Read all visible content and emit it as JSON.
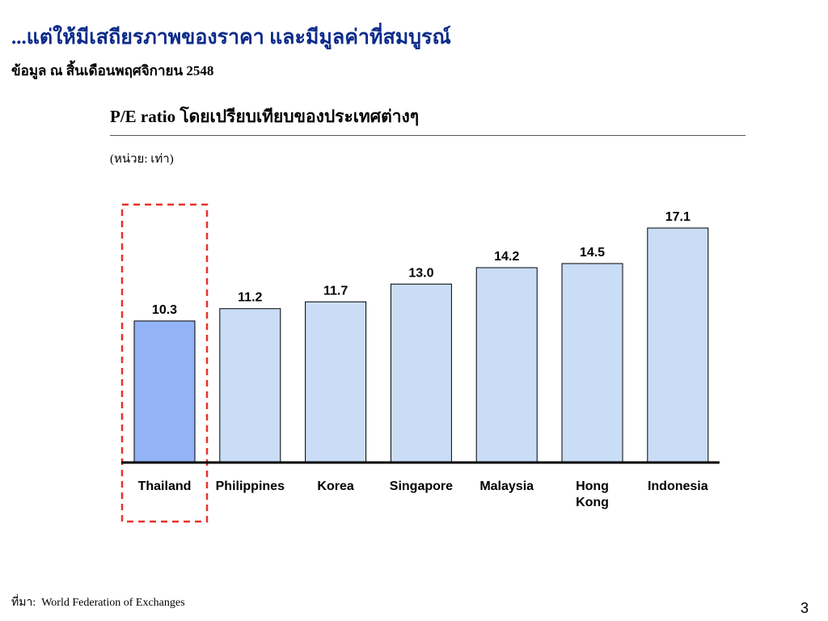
{
  "slide": {
    "title": "...แต่ให้มีเสถียรภาพของราคา และมีมูลค่าที่สมบูรณ์",
    "subtitle": "ข้อมูล ณ สิ้นเดือนพฤศจิกายน 2548",
    "source_label": "ที่มา:",
    "source_text": "World Federation of Exchanges",
    "page_number": "3"
  },
  "chart_data": {
    "type": "bar",
    "title": "P/E ratio โดยเปรียบเทียบของประเทศต่างๆ",
    "unit": "(หน่วย: เท่า)",
    "categories": [
      "Thailand",
      "Philippines",
      "Korea",
      "Singapore",
      "Malaysia",
      "Hong Kong",
      "Indonesia"
    ],
    "values": [
      10.3,
      11.2,
      11.7,
      13.0,
      14.2,
      14.5,
      17.1
    ],
    "value_labels": [
      "10.3",
      "11.2",
      "11.7",
      "13.0",
      "14.2",
      "14.5",
      "17.1"
    ],
    "ylim": [
      0,
      18
    ],
    "grid": false,
    "highlight": "Thailand",
    "colors": {
      "bar": "#c9ddf7",
      "bar_highlight": "#94b3f7",
      "bar_outline": "#000000",
      "highlight_box": "#e8322b",
      "axis": "#000000",
      "title": "#0b2a8a"
    }
  }
}
